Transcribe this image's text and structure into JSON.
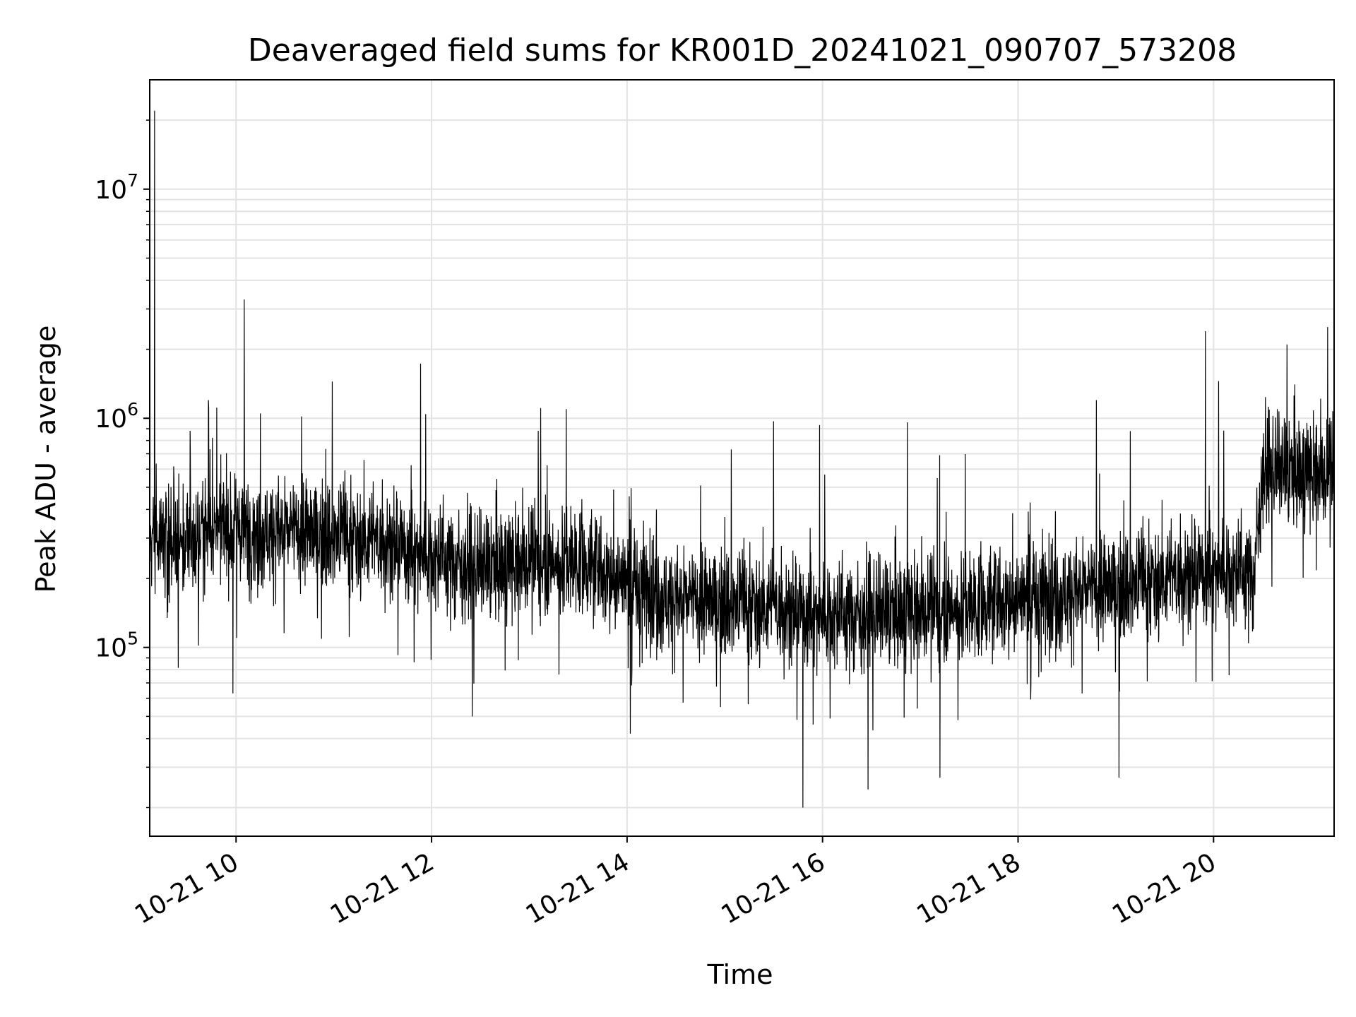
{
  "chart_data": {
    "type": "line",
    "title": "Deaveraged field sums for KR001D_20241021_090707_573208",
    "xlabel": "Time",
    "ylabel": "Peak ADU - average",
    "yscale": "log",
    "xlim": [
      "2024-10-21 09:07",
      "2024-10-21 21:14"
    ],
    "ylim": [
      15000,
      30000000
    ],
    "grid": true,
    "line_color": "#000000",
    "grid_color": "#e3e3e3",
    "x_ticks": [
      {
        "t": "2024-10-21 10:00",
        "label": "10-21 10"
      },
      {
        "t": "2024-10-21 12:00",
        "label": "10-21 12"
      },
      {
        "t": "2024-10-21 14:00",
        "label": "10-21 14"
      },
      {
        "t": "2024-10-21 16:00",
        "label": "10-21 16"
      },
      {
        "t": "2024-10-21 18:00",
        "label": "10-21 18"
      },
      {
        "t": "2024-10-21 20:00",
        "label": "10-21 20"
      }
    ],
    "y_ticks": [
      {
        "value": 100000,
        "base": "10",
        "exp": "5"
      },
      {
        "value": 1000000,
        "base": "10",
        "exp": "6"
      },
      {
        "value": 10000000,
        "base": "10",
        "exp": "7"
      }
    ],
    "series": [
      {
        "style": "noise-band",
        "baseline": [
          {
            "t": "2024-10-21 09:07",
            "y": 330000
          },
          {
            "t": "2024-10-21 09:30",
            "y": 280000
          },
          {
            "t": "2024-10-21 09:45",
            "y": 330000
          },
          {
            "t": "2024-10-21 10:30",
            "y": 320000
          },
          {
            "t": "2024-10-21 11:30",
            "y": 290000
          },
          {
            "t": "2024-10-21 12:30",
            "y": 220000
          },
          {
            "t": "2024-10-21 13:30",
            "y": 240000
          },
          {
            "t": "2024-10-21 14:30",
            "y": 160000
          },
          {
            "t": "2024-10-21 15:30",
            "y": 150000
          },
          {
            "t": "2024-10-21 16:00",
            "y": 140000
          },
          {
            "t": "2024-10-21 17:00",
            "y": 140000
          },
          {
            "t": "2024-10-21 18:00",
            "y": 165000
          },
          {
            "t": "2024-10-21 19:00",
            "y": 180000
          },
          {
            "t": "2024-10-21 20:00",
            "y": 220000
          },
          {
            "t": "2024-10-21 20:25",
            "y": 210000
          },
          {
            "t": "2024-10-21 20:30",
            "y": 600000
          },
          {
            "t": "2024-10-21 21:14",
            "y": 550000
          }
        ],
        "spikes": [
          {
            "t": "2024-10-21 09:10",
            "y": 22000000
          },
          {
            "t": "2024-10-21 10:05",
            "y": 3300000
          },
          {
            "t": "2024-10-21 09:43",
            "y": 1200000
          },
          {
            "t": "2024-10-21 10:15",
            "y": 1050000
          },
          {
            "t": "2024-10-21 15:30",
            "y": 970000
          },
          {
            "t": "2024-10-21 16:52",
            "y": 960000
          },
          {
            "t": "2024-10-21 18:48",
            "y": 1200000
          },
          {
            "t": "2024-10-21 19:55",
            "y": 2400000
          },
          {
            "t": "2024-10-21 20:45",
            "y": 2100000
          },
          {
            "t": "2024-10-21 21:10",
            "y": 2500000
          },
          {
            "t": "2024-10-21 15:48",
            "y": 20000
          },
          {
            "t": "2024-10-21 16:28",
            "y": 24000
          },
          {
            "t": "2024-10-21 17:12",
            "y": 27000
          },
          {
            "t": "2024-10-21 19:02",
            "y": 27000
          },
          {
            "t": "2024-10-21 12:25",
            "y": 50000
          },
          {
            "t": "2024-10-21 14:02",
            "y": 42000
          },
          {
            "t": "2024-10-21 09:58",
            "y": 63000
          }
        ]
      }
    ]
  }
}
